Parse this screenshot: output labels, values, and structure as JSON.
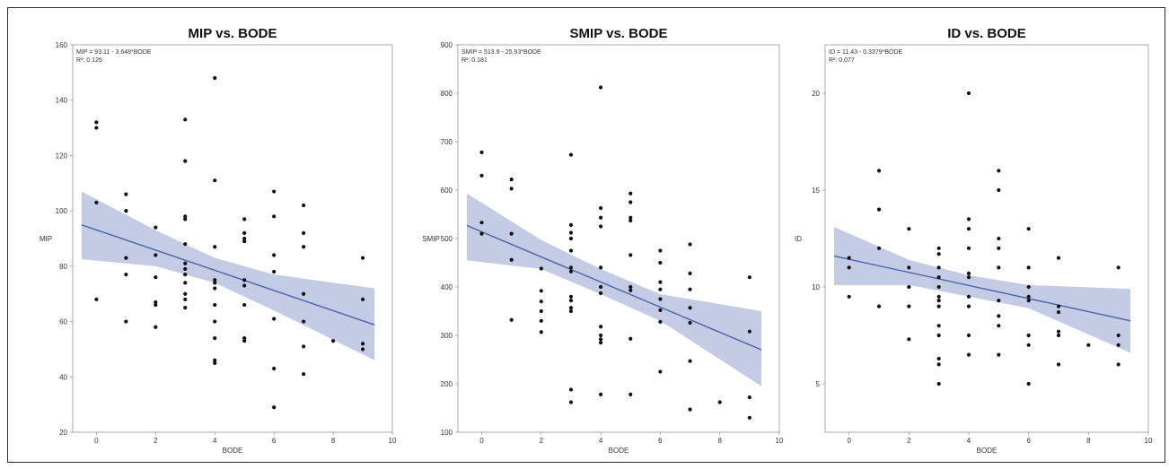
{
  "colors": {
    "band": "#c4cbe4",
    "line": "#3f5fa6",
    "point": "#111111",
    "axis": "#888888"
  },
  "chart_data": [
    {
      "type": "scatter",
      "title": "MIP vs. BODE",
      "xlabel": "BODE",
      "ylabel": "MIP",
      "equation": "MIP = 93.11 - 3.648*BODE",
      "r2": "R²: 0.126",
      "xlim": [
        -0.8,
        10
      ],
      "ylim": [
        20,
        160
      ],
      "xticks": [
        0,
        2,
        4,
        6,
        8,
        10
      ],
      "yticks": [
        20,
        40,
        60,
        80,
        100,
        120,
        140,
        160
      ],
      "fit": {
        "intercept": 93.11,
        "slope": -3.648,
        "x_range": [
          -0.5,
          9.4
        ]
      },
      "band": [
        {
          "x": -0.5,
          "lo": 82.5,
          "hi": 107
        },
        {
          "x": 2,
          "lo": 80,
          "hi": 93
        },
        {
          "x": 4,
          "lo": 74,
          "hi": 83
        },
        {
          "x": 6,
          "lo": 64,
          "hi": 77
        },
        {
          "x": 9.4,
          "lo": 46,
          "hi": 72
        }
      ],
      "points": [
        [
          0,
          132
        ],
        [
          0,
          130
        ],
        [
          0,
          103
        ],
        [
          0,
          68
        ],
        [
          1,
          106
        ],
        [
          1,
          100
        ],
        [
          1,
          83
        ],
        [
          1,
          77
        ],
        [
          1,
          60
        ],
        [
          2,
          94
        ],
        [
          2,
          84
        ],
        [
          2,
          76
        ],
        [
          2,
          67
        ],
        [
          2,
          66
        ],
        [
          2,
          58
        ],
        [
          3,
          133
        ],
        [
          3,
          118
        ],
        [
          3,
          98
        ],
        [
          3,
          97
        ],
        [
          3,
          88
        ],
        [
          3,
          81
        ],
        [
          3,
          79
        ],
        [
          3,
          77
        ],
        [
          3,
          74
        ],
        [
          3,
          70
        ],
        [
          3,
          68
        ],
        [
          3,
          65
        ],
        [
          4,
          148
        ],
        [
          4,
          111
        ],
        [
          4,
          87
        ],
        [
          4,
          75
        ],
        [
          4,
          74
        ],
        [
          4,
          72
        ],
        [
          4,
          66
        ],
        [
          4,
          60
        ],
        [
          4,
          54
        ],
        [
          4,
          46
        ],
        [
          4,
          45
        ],
        [
          5,
          97
        ],
        [
          5,
          92
        ],
        [
          5,
          90
        ],
        [
          5,
          89
        ],
        [
          5,
          75
        ],
        [
          5,
          73
        ],
        [
          5,
          66
        ],
        [
          5,
          54
        ],
        [
          5,
          53
        ],
        [
          6,
          107
        ],
        [
          6,
          98
        ],
        [
          6,
          84
        ],
        [
          6,
          78
        ],
        [
          6,
          61
        ],
        [
          6,
          43
        ],
        [
          6,
          29
        ],
        [
          7,
          102
        ],
        [
          7,
          92
        ],
        [
          7,
          87
        ],
        [
          7,
          70
        ],
        [
          7,
          60
        ],
        [
          7,
          51
        ],
        [
          7,
          41
        ],
        [
          8,
          53
        ],
        [
          9,
          83
        ],
        [
          9,
          68
        ],
        [
          9,
          52
        ],
        [
          9,
          50
        ]
      ]
    },
    {
      "type": "scatter",
      "title": "SMIP vs. BODE",
      "xlabel": "BODE",
      "ylabel": "SMIP",
      "equation": "SMIP = 513.9 - 25.93*BODE",
      "r2": "R²: 0.181",
      "xlim": [
        -0.8,
        10
      ],
      "ylim": [
        100,
        900
      ],
      "xticks": [
        0,
        2,
        4,
        6,
        8,
        10
      ],
      "yticks": [
        100,
        200,
        300,
        400,
        500,
        600,
        700,
        800,
        900
      ],
      "fit": {
        "intercept": 513.9,
        "slope": -25.93,
        "x_range": [
          -0.5,
          9.4
        ]
      },
      "band": [
        {
          "x": -0.5,
          "lo": 455,
          "hi": 593
        },
        {
          "x": 2,
          "lo": 437,
          "hi": 497
        },
        {
          "x": 4,
          "lo": 385,
          "hi": 437
        },
        {
          "x": 6,
          "lo": 330,
          "hi": 385
        },
        {
          "x": 9.4,
          "lo": 195,
          "hi": 350
        }
      ],
      "points": [
        [
          0,
          678
        ],
        [
          0,
          630
        ],
        [
          0,
          533
        ],
        [
          0,
          510
        ],
        [
          1,
          622
        ],
        [
          1,
          603
        ],
        [
          1,
          510
        ],
        [
          1,
          456
        ],
        [
          1,
          332
        ],
        [
          2,
          438
        ],
        [
          2,
          392
        ],
        [
          2,
          370
        ],
        [
          2,
          350
        ],
        [
          2,
          330
        ],
        [
          2,
          307
        ],
        [
          3,
          673
        ],
        [
          3,
          528
        ],
        [
          3,
          512
        ],
        [
          3,
          500
        ],
        [
          3,
          475
        ],
        [
          3,
          440
        ],
        [
          3,
          432
        ],
        [
          3,
          380
        ],
        [
          3,
          372
        ],
        [
          3,
          357
        ],
        [
          3,
          350
        ],
        [
          3,
          188
        ],
        [
          3,
          162
        ],
        [
          4,
          812
        ],
        [
          4,
          563
        ],
        [
          4,
          543
        ],
        [
          4,
          525
        ],
        [
          4,
          440
        ],
        [
          4,
          400
        ],
        [
          4,
          387
        ],
        [
          4,
          318
        ],
        [
          4,
          300
        ],
        [
          4,
          292
        ],
        [
          4,
          285
        ],
        [
          4,
          178
        ],
        [
          5,
          593
        ],
        [
          5,
          575
        ],
        [
          5,
          543
        ],
        [
          5,
          537
        ],
        [
          5,
          466
        ],
        [
          5,
          400
        ],
        [
          5,
          393
        ],
        [
          5,
          293
        ],
        [
          5,
          178
        ],
        [
          6,
          475
        ],
        [
          6,
          450
        ],
        [
          6,
          410
        ],
        [
          6,
          395
        ],
        [
          6,
          375
        ],
        [
          6,
          352
        ],
        [
          6,
          328
        ],
        [
          6,
          225
        ],
        [
          7,
          488
        ],
        [
          7,
          428
        ],
        [
          7,
          395
        ],
        [
          7,
          357
        ],
        [
          7,
          326
        ],
        [
          7,
          247
        ],
        [
          7,
          147
        ],
        [
          8,
          162
        ],
        [
          9,
          420
        ],
        [
          9,
          308
        ],
        [
          9,
          172
        ],
        [
          9,
          130
        ]
      ]
    },
    {
      "type": "scatter",
      "title": "ID vs. BODE",
      "xlabel": "BODE",
      "ylabel": "ID",
      "equation": "ID = 11.43 - 0.3379*BODE",
      "r2": "R²: 0.077",
      "xlim": [
        -0.8,
        10
      ],
      "ylim": [
        2.5,
        22.5
      ],
      "xticks": [
        0,
        2,
        4,
        6,
        8,
        10
      ],
      "yticks": [
        5,
        10,
        15,
        20
      ],
      "fit": {
        "intercept": 11.43,
        "slope": -0.3379,
        "x_range": [
          -0.5,
          9.4
        ]
      },
      "band": [
        {
          "x": -0.5,
          "lo": 10.1,
          "hi": 13.1
        },
        {
          "x": 2,
          "lo": 10.1,
          "hi": 11.4
        },
        {
          "x": 4,
          "lo": 9.5,
          "hi": 10.6
        },
        {
          "x": 6,
          "lo": 8.9,
          "hi": 10.1
        },
        {
          "x": 9.4,
          "lo": 6.6,
          "hi": 9.9
        }
      ],
      "points": [
        [
          0,
          11.5
        ],
        [
          0,
          11
        ],
        [
          0,
          9.5
        ],
        [
          1,
          16
        ],
        [
          1,
          14
        ],
        [
          1,
          12
        ],
        [
          1,
          9
        ],
        [
          2,
          13
        ],
        [
          2,
          11
        ],
        [
          2,
          10
        ],
        [
          2,
          9
        ],
        [
          2,
          7.3
        ],
        [
          3,
          12
        ],
        [
          3,
          11.7
        ],
        [
          3,
          11
        ],
        [
          3,
          10.5
        ],
        [
          3,
          10
        ],
        [
          3,
          9.5
        ],
        [
          3,
          9.3
        ],
        [
          3,
          9
        ],
        [
          3,
          8
        ],
        [
          3,
          7.5
        ],
        [
          3,
          6.3
        ],
        [
          3,
          6
        ],
        [
          3,
          5
        ],
        [
          4,
          20
        ],
        [
          4,
          13.5
        ],
        [
          4,
          13
        ],
        [
          4,
          12
        ],
        [
          4,
          10.7
        ],
        [
          4,
          10.5
        ],
        [
          4,
          9.5
        ],
        [
          4,
          9
        ],
        [
          4,
          7.5
        ],
        [
          4,
          6.5
        ],
        [
          5,
          16
        ],
        [
          5,
          15
        ],
        [
          5,
          12.5
        ],
        [
          5,
          12
        ],
        [
          5,
          11
        ],
        [
          5,
          9.3
        ],
        [
          5,
          8.5
        ],
        [
          5,
          8
        ],
        [
          5,
          6.5
        ],
        [
          6,
          13
        ],
        [
          6,
          11
        ],
        [
          6,
          10
        ],
        [
          6,
          9.5
        ],
        [
          6,
          9.3
        ],
        [
          6,
          7.5
        ],
        [
          6,
          7
        ],
        [
          6,
          5
        ],
        [
          7,
          11.5
        ],
        [
          7,
          9
        ],
        [
          7,
          8.7
        ],
        [
          7,
          7.7
        ],
        [
          7,
          7.5
        ],
        [
          7,
          6
        ],
        [
          8,
          7
        ],
        [
          9,
          11
        ],
        [
          9,
          7.5
        ],
        [
          9,
          7
        ],
        [
          9,
          6
        ]
      ]
    }
  ]
}
